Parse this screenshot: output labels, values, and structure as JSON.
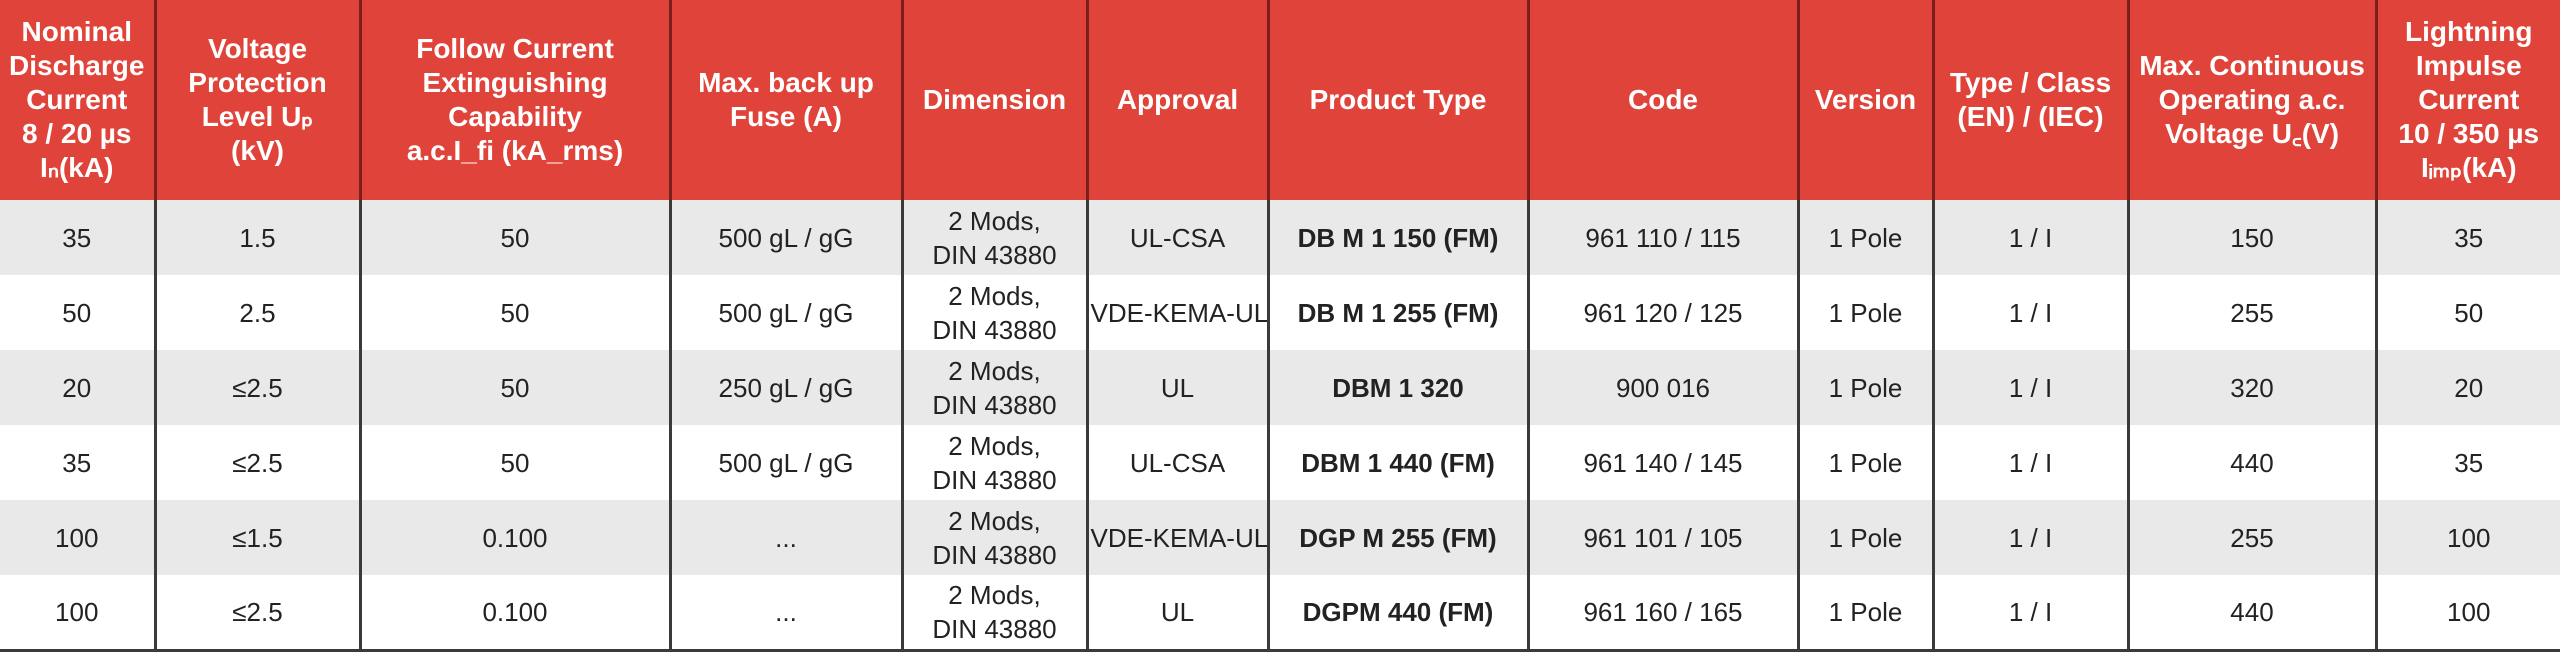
{
  "headers": [
    {
      "lines": [
        "Nominal",
        "Discharge",
        "Current",
        "8 / 20 µs",
        "Iₙ(kA)"
      ]
    },
    {
      "lines": [
        "Voltage",
        "Protection",
        "Level Uₚ",
        "(kV)"
      ]
    },
    {
      "lines": [
        "Follow Current",
        "Extinguishing",
        "Capability",
        "a.c.I_fi (kA_rms)"
      ]
    },
    {
      "lines": [
        "Max. back up",
        "Fuse (A)"
      ]
    },
    {
      "lines": [
        "Dimension"
      ]
    },
    {
      "lines": [
        "Approval"
      ]
    },
    {
      "lines": [
        "Product Type"
      ]
    },
    {
      "lines": [
        "Code"
      ]
    },
    {
      "lines": [
        "Version"
      ]
    },
    {
      "lines": [
        "Type / Class",
        "(EN) / (IEC)"
      ]
    },
    {
      "lines": [
        "Max. Continuous",
        "Operating a.c.",
        "Voltage U꜀(V)"
      ]
    },
    {
      "lines": [
        "Lightning",
        "Impulse",
        "Current",
        "10 / 350 µs",
        "Iᵢₘₚ(kA)"
      ]
    }
  ],
  "rows": [
    {
      "in_ka": "35",
      "up_kv": "1.5",
      "ifi": "50",
      "fuse": "500 gL / gG",
      "dim1": "2 Mods,",
      "dim2": "DIN 43880",
      "approval": "UL-CSA",
      "product": "DB M 1 150 (FM)",
      "code": "961 110 / 115",
      "version": "1 Pole",
      "class": "1 / I",
      "uc": "150",
      "iimp": "35"
    },
    {
      "in_ka": "50",
      "up_kv": "2.5",
      "ifi": "50",
      "fuse": "500 gL / gG",
      "dim1": "2 Mods,",
      "dim2": "DIN 43880",
      "approval": "VDE-KEMA-UL",
      "product": "DB M 1 255 (FM)",
      "code": "961 120 / 125",
      "version": "1 Pole",
      "class": "1 / I",
      "uc": "255",
      "iimp": "50"
    },
    {
      "in_ka": "20",
      "up_kv": "≤2.5",
      "ifi": "50",
      "fuse": "250 gL / gG",
      "dim1": "2 Mods,",
      "dim2": "DIN 43880",
      "approval": "UL",
      "product": "DBM 1 320",
      "code": "900 016",
      "version": "1 Pole",
      "class": "1 / I",
      "uc": "320",
      "iimp": "20"
    },
    {
      "in_ka": "35",
      "up_kv": "≤2.5",
      "ifi": "50",
      "fuse": "500 gL / gG",
      "dim1": "2 Mods,",
      "dim2": "DIN 43880",
      "approval": "UL-CSA",
      "product": "DBM 1 440 (FM)",
      "code": "961 140 / 145",
      "version": "1 Pole",
      "class": "1 / I",
      "uc": "440",
      "iimp": "35"
    },
    {
      "in_ka": "100",
      "up_kv": "≤1.5",
      "ifi": "0.100",
      "fuse": "...",
      "dim1": "2 Mods,",
      "dim2": "DIN 43880",
      "approval": "VDE-KEMA-UL",
      "product": "DGP M 255 (FM)",
      "code": "961 101 / 105",
      "version": "1 Pole",
      "class": "1 / I",
      "uc": "255",
      "iimp": "100"
    },
    {
      "in_ka": "100",
      "up_kv": "≤2.5",
      "ifi": "0.100",
      "fuse": "...",
      "dim1": "2 Mods,",
      "dim2": "DIN 43880",
      "approval": "UL",
      "product": "DGPM 440 (FM)",
      "code": "961 160 / 165",
      "version": "1 Pole",
      "class": "1 / I",
      "uc": "440",
      "iimp": "100"
    }
  ],
  "colors": {
    "header_bg": "#e0433a",
    "header_text": "#ffffff",
    "row_shade": "#e9e9e9"
  }
}
